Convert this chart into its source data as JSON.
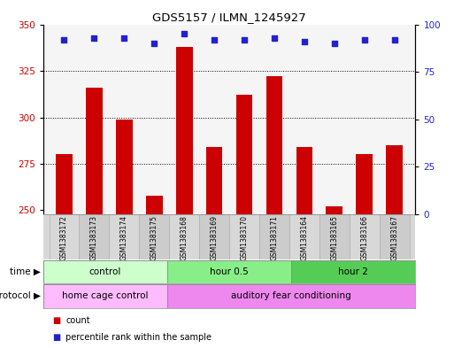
{
  "title": "GDS5157 / ILMN_1245927",
  "samples": [
    "GSM1383172",
    "GSM1383173",
    "GSM1383174",
    "GSM1383175",
    "GSM1383168",
    "GSM1383169",
    "GSM1383170",
    "GSM1383171",
    "GSM1383164",
    "GSM1383165",
    "GSM1383166",
    "GSM1383167"
  ],
  "counts": [
    280,
    316,
    299,
    258,
    338,
    284,
    312,
    322,
    284,
    252,
    280,
    285
  ],
  "percentile_ranks": [
    92,
    93,
    93,
    90,
    95,
    92,
    92,
    93,
    91,
    90,
    92,
    92
  ],
  "ylim_left": [
    248,
    350
  ],
  "ylim_right": [
    0,
    100
  ],
  "yticks_left": [
    250,
    275,
    300,
    325,
    350
  ],
  "yticks_right": [
    0,
    25,
    50,
    75,
    100
  ],
  "bar_color": "#cc0000",
  "dot_color": "#2222cc",
  "grid_color": "#000000",
  "plot_facecolor": "#f5f5f5",
  "time_groups": [
    {
      "label": "control",
      "start": 0,
      "end": 4,
      "color": "#ccffcc"
    },
    {
      "label": "hour 0.5",
      "start": 4,
      "end": 8,
      "color": "#88ee88"
    },
    {
      "label": "hour 2",
      "start": 8,
      "end": 12,
      "color": "#55cc55"
    }
  ],
  "protocol_groups": [
    {
      "label": "home cage control",
      "start": 0,
      "end": 4,
      "color": "#ffbbff"
    },
    {
      "label": "auditory fear conditioning",
      "start": 4,
      "end": 12,
      "color": "#ee88ee"
    }
  ],
  "legend_count_color": "#cc0000",
  "legend_dot_color": "#2222cc",
  "time_label": "time",
  "protocol_label": "protocol",
  "axes_label_color_left": "#cc0000",
  "axes_label_color_right": "#2222cc",
  "sample_bg_odd": "#d8d8d8",
  "sample_bg_even": "#cccccc",
  "sample_border": "#aaaaaa"
}
